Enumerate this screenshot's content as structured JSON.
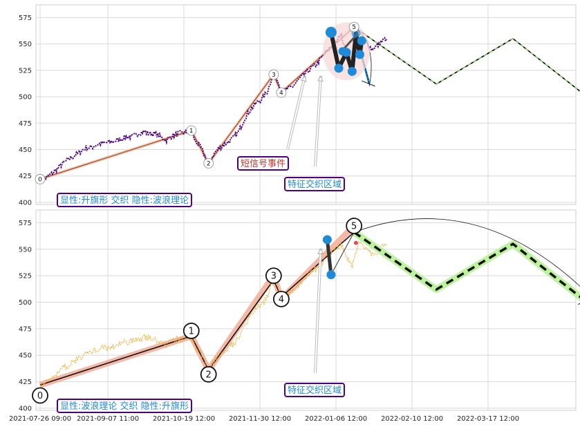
{
  "chart_data": {
    "type": "line",
    "x_ticks": [
      "2021-07-26 09:00",
      "2021-09-07 11:00",
      "2021-10-19 12:00",
      "2021-11-30 12:00",
      "2022-01-06 12:00",
      "2022-02-10 12:00",
      "2022-03-17 12:00"
    ],
    "panels": [
      {
        "ylim": [
          398,
          587
        ],
        "y_ticks": [
          400,
          425,
          450,
          475,
          500,
          525,
          550,
          575
        ],
        "series": [
          {
            "values": [
              [
                0,
                422
              ],
              [
                3,
                423
              ],
              [
                6,
                427
              ],
              [
                9,
                432
              ],
              [
                12,
                437
              ],
              [
                15,
                441
              ],
              [
                18,
                444
              ],
              [
                21,
                448
              ],
              [
                24,
                452
              ],
              [
                27,
                452
              ],
              [
                30,
                455
              ],
              [
                33,
                456
              ],
              [
                36,
                457
              ],
              [
                39,
                458
              ],
              [
                42,
                460
              ],
              [
                45,
                462
              ],
              [
                48,
                462
              ],
              [
                51,
                465
              ],
              [
                54,
                467
              ],
              [
                57,
                465
              ],
              [
                60,
                465
              ],
              [
                63,
                462
              ],
              [
                66,
                459
              ],
              [
                69,
                463
              ],
              [
                72,
                465
              ],
              [
                75,
                466
              ],
              [
                78,
                467
              ],
              [
                79,
                468
              ],
              [
                81,
                458
              ],
              [
                84,
                452
              ],
              [
                86,
                444
              ],
              [
                88,
                437
              ],
              [
                90,
                443
              ],
              [
                92,
                449
              ],
              [
                95,
                453
              ],
              [
                98,
                457
              ],
              [
                101,
                461
              ],
              [
                104,
                468
              ],
              [
                107,
                480
              ],
              [
                110,
                488
              ],
              [
                113,
                494
              ],
              [
                116,
                498
              ],
              [
                119,
                506
              ],
              [
                121,
                518
              ],
              [
                123,
                520
              ],
              [
                125,
                511
              ],
              [
                127,
                505
              ],
              [
                129,
                507
              ],
              [
                132,
                510
              ],
              [
                135,
                516
              ],
              [
                138,
                521
              ],
              [
                141,
                526
              ],
              [
                144,
                530
              ],
              [
                147,
                537
              ],
              [
                150,
                543
              ],
              [
                153,
                550
              ],
              [
                155,
                552
              ],
              [
                157,
                560
              ],
              [
                159,
                549
              ],
              [
                161,
                540
              ],
              [
                163,
                536
              ],
              [
                165,
                549
              ],
              [
                167,
                556
              ],
              [
                169,
                553
              ],
              [
                171,
                552
              ],
              [
                173,
                545
              ],
              [
                176,
                548
              ],
              [
                179,
                553
              ],
              [
                181,
                555
              ]
            ]
          }
        ],
        "wave_points": [
          {
            "label": "0",
            "x": 0,
            "y": 422
          },
          {
            "label": "1",
            "x": 79,
            "y": 468
          },
          {
            "label": "2",
            "x": 88,
            "y": 437
          },
          {
            "label": "3",
            "x": 122,
            "y": 521
          },
          {
            "label": "4",
            "x": 126,
            "y": 504
          },
          {
            "label": "5",
            "x": 164,
            "y": 566
          }
        ],
        "projection": [
          [
            164,
            566
          ],
          [
            207,
            512
          ],
          [
            247,
            555
          ],
          [
            285,
            501
          ]
        ],
        "flag_pattern": [
          [
            152,
            561
          ],
          [
            156,
            527
          ],
          [
            160,
            542
          ],
          [
            163,
            524
          ],
          [
            165,
            560
          ],
          [
            167,
            540
          ],
          [
            168,
            553
          ]
        ],
        "annotations": [
          "短信号事件",
          "特征交织区域",
          "显性:升旗形 交织 隐性:波浪理论"
        ]
      },
      {
        "ylim": [
          398,
          587
        ],
        "y_ticks": [
          400,
          425,
          450,
          475,
          500,
          525,
          550,
          575
        ],
        "series": [
          {
            "values": [
              [
                0,
                422
              ],
              [
                3,
                424
              ],
              [
                6,
                428
              ],
              [
                9,
                433
              ],
              [
                12,
                438
              ],
              [
                15,
                441
              ],
              [
                18,
                444
              ],
              [
                21,
                448
              ],
              [
                24,
                452
              ],
              [
                27,
                453
              ],
              [
                30,
                456
              ],
              [
                33,
                457
              ],
              [
                36,
                457
              ],
              [
                39,
                459
              ],
              [
                42,
                461
              ],
              [
                45,
                462
              ],
              [
                48,
                463
              ],
              [
                51,
                465
              ],
              [
                54,
                467
              ],
              [
                57,
                466
              ],
              [
                60,
                465
              ],
              [
                63,
                462
              ],
              [
                66,
                460
              ],
              [
                69,
                463
              ],
              [
                72,
                465
              ],
              [
                75,
                466
              ],
              [
                78,
                467
              ],
              [
                79,
                468
              ],
              [
                81,
                458
              ],
              [
                84,
                452
              ],
              [
                86,
                444
              ],
              [
                88,
                436
              ],
              [
                90,
                442
              ],
              [
                92,
                449
              ],
              [
                95,
                453
              ],
              [
                98,
                457
              ],
              [
                101,
                461
              ],
              [
                104,
                468
              ],
              [
                107,
                479
              ],
              [
                110,
                488
              ],
              [
                113,
                494
              ],
              [
                116,
                498
              ],
              [
                119,
                506
              ],
              [
                121,
                518
              ],
              [
                123,
                521
              ],
              [
                125,
                511
              ],
              [
                127,
                505
              ],
              [
                129,
                507
              ],
              [
                132,
                511
              ],
              [
                135,
                516
              ],
              [
                138,
                521
              ],
              [
                141,
                527
              ],
              [
                144,
                531
              ],
              [
                147,
                537
              ],
              [
                150,
                543
              ],
              [
                153,
                548
              ],
              [
                155,
                551
              ],
              [
                157,
                556
              ],
              [
                159,
                548
              ],
              [
                161,
                540
              ],
              [
                163,
                534
              ],
              [
                165,
                548
              ],
              [
                167,
                556
              ],
              [
                169,
                553
              ],
              [
                171,
                551
              ],
              [
                173,
                545
              ],
              [
                176,
                548
              ],
              [
                179,
                553
              ],
              [
                181,
                555
              ]
            ]
          }
        ],
        "wave_points": [
          {
            "label": "0",
            "x": 0,
            "y": 412
          },
          {
            "label": "1",
            "x": 79,
            "y": 473
          },
          {
            "label": "2",
            "x": 88,
            "y": 432
          },
          {
            "label": "3",
            "x": 122,
            "y": 525
          },
          {
            "label": "4",
            "x": 126,
            "y": 503
          },
          {
            "label": "5",
            "x": 164,
            "y": 572
          }
        ],
        "projection": [
          [
            164,
            566
          ],
          [
            207,
            512
          ],
          [
            247,
            555
          ],
          [
            285,
            501
          ]
        ],
        "flag_pattern": [
          [
            150,
            559
          ],
          [
            152,
            526
          ],
          [
            164,
            566
          ]
        ],
        "annotations": [
          "特征交织区域",
          "显性:波浪理论 交织 隐性:升旗形"
        ]
      }
    ],
    "colors": {
      "price_top": "#4b0082",
      "price_bottom": "#f0b030",
      "wave_line": "#e88a6a",
      "flag_marker": "#1f8ad8",
      "projection_top": "#1a6b00",
      "projection_bottom": "#bff2a0",
      "label_border": "#4b0082",
      "signal_text": "#c0392b",
      "region_text": "#1f8ad8"
    }
  }
}
